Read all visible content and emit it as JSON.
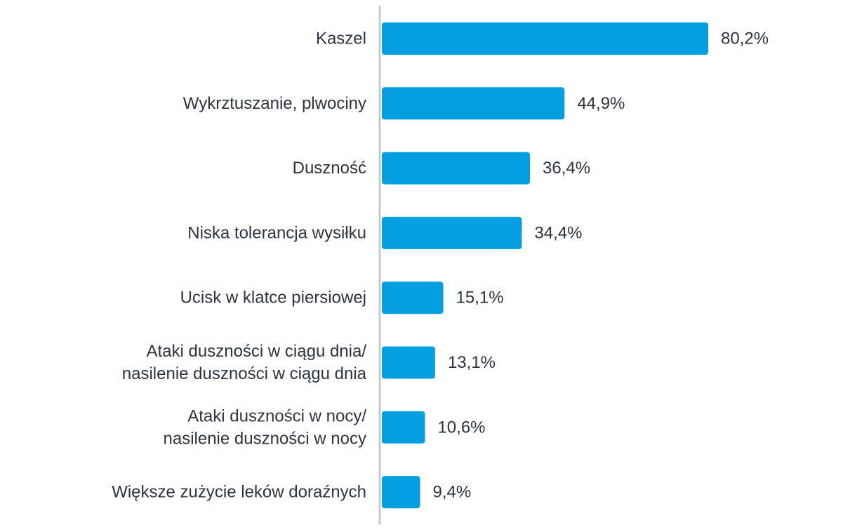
{
  "chart_data": {
    "type": "bar",
    "orientation": "horizontal",
    "categories": [
      [
        "Kaszel"
      ],
      [
        "Wykrztuszanie, plwociny"
      ],
      [
        "Duszność"
      ],
      [
        "Niska tolerancja wysiłku"
      ],
      [
        "Ucisk w klatce piersiowej"
      ],
      [
        "Ataki duszności w ciągu dnia/",
        "nasilenie duszności w ciągu dnia"
      ],
      [
        "Ataki duszności w nocy/",
        "nasilenie duszności w nocy"
      ],
      [
        "Większe zużycie leków doraźnych"
      ]
    ],
    "values": [
      80.2,
      44.9,
      36.4,
      34.4,
      15.1,
      13.1,
      10.6,
      9.4
    ],
    "value_labels": [
      "80,2%",
      "44,9%",
      "36,4%",
      "34,4%",
      "15,1%",
      "13,1%",
      "10,6%",
      "9,4%"
    ],
    "bar_color": "#049fe0",
    "axis_color": "#c8c8c8",
    "text_color": "#2b3440",
    "grid": false,
    "legend": "none"
  }
}
